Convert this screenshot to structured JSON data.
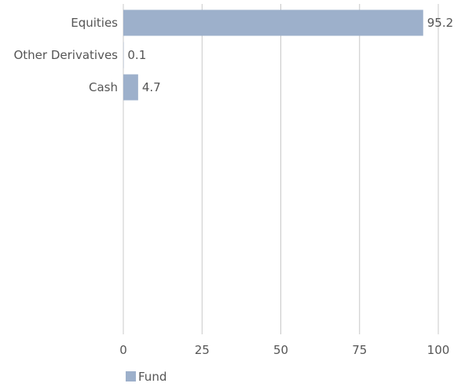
{
  "chart_data": {
    "type": "bar",
    "orientation": "horizontal",
    "categories": [
      "Equities",
      "Other Derivatives",
      "Cash"
    ],
    "series": [
      {
        "name": "Fund",
        "values": [
          95.2,
          0.1,
          4.7
        ],
        "color": "#9db0cb"
      }
    ],
    "data_labels": [
      "95.2",
      "0.1",
      "4.7"
    ],
    "x_ticks": [
      "0",
      "25",
      "50",
      "75",
      "100"
    ],
    "xlim": [
      0,
      100
    ],
    "grid": true,
    "grid_color": "#c8c8c8",
    "legend_position": "bottom-left"
  }
}
